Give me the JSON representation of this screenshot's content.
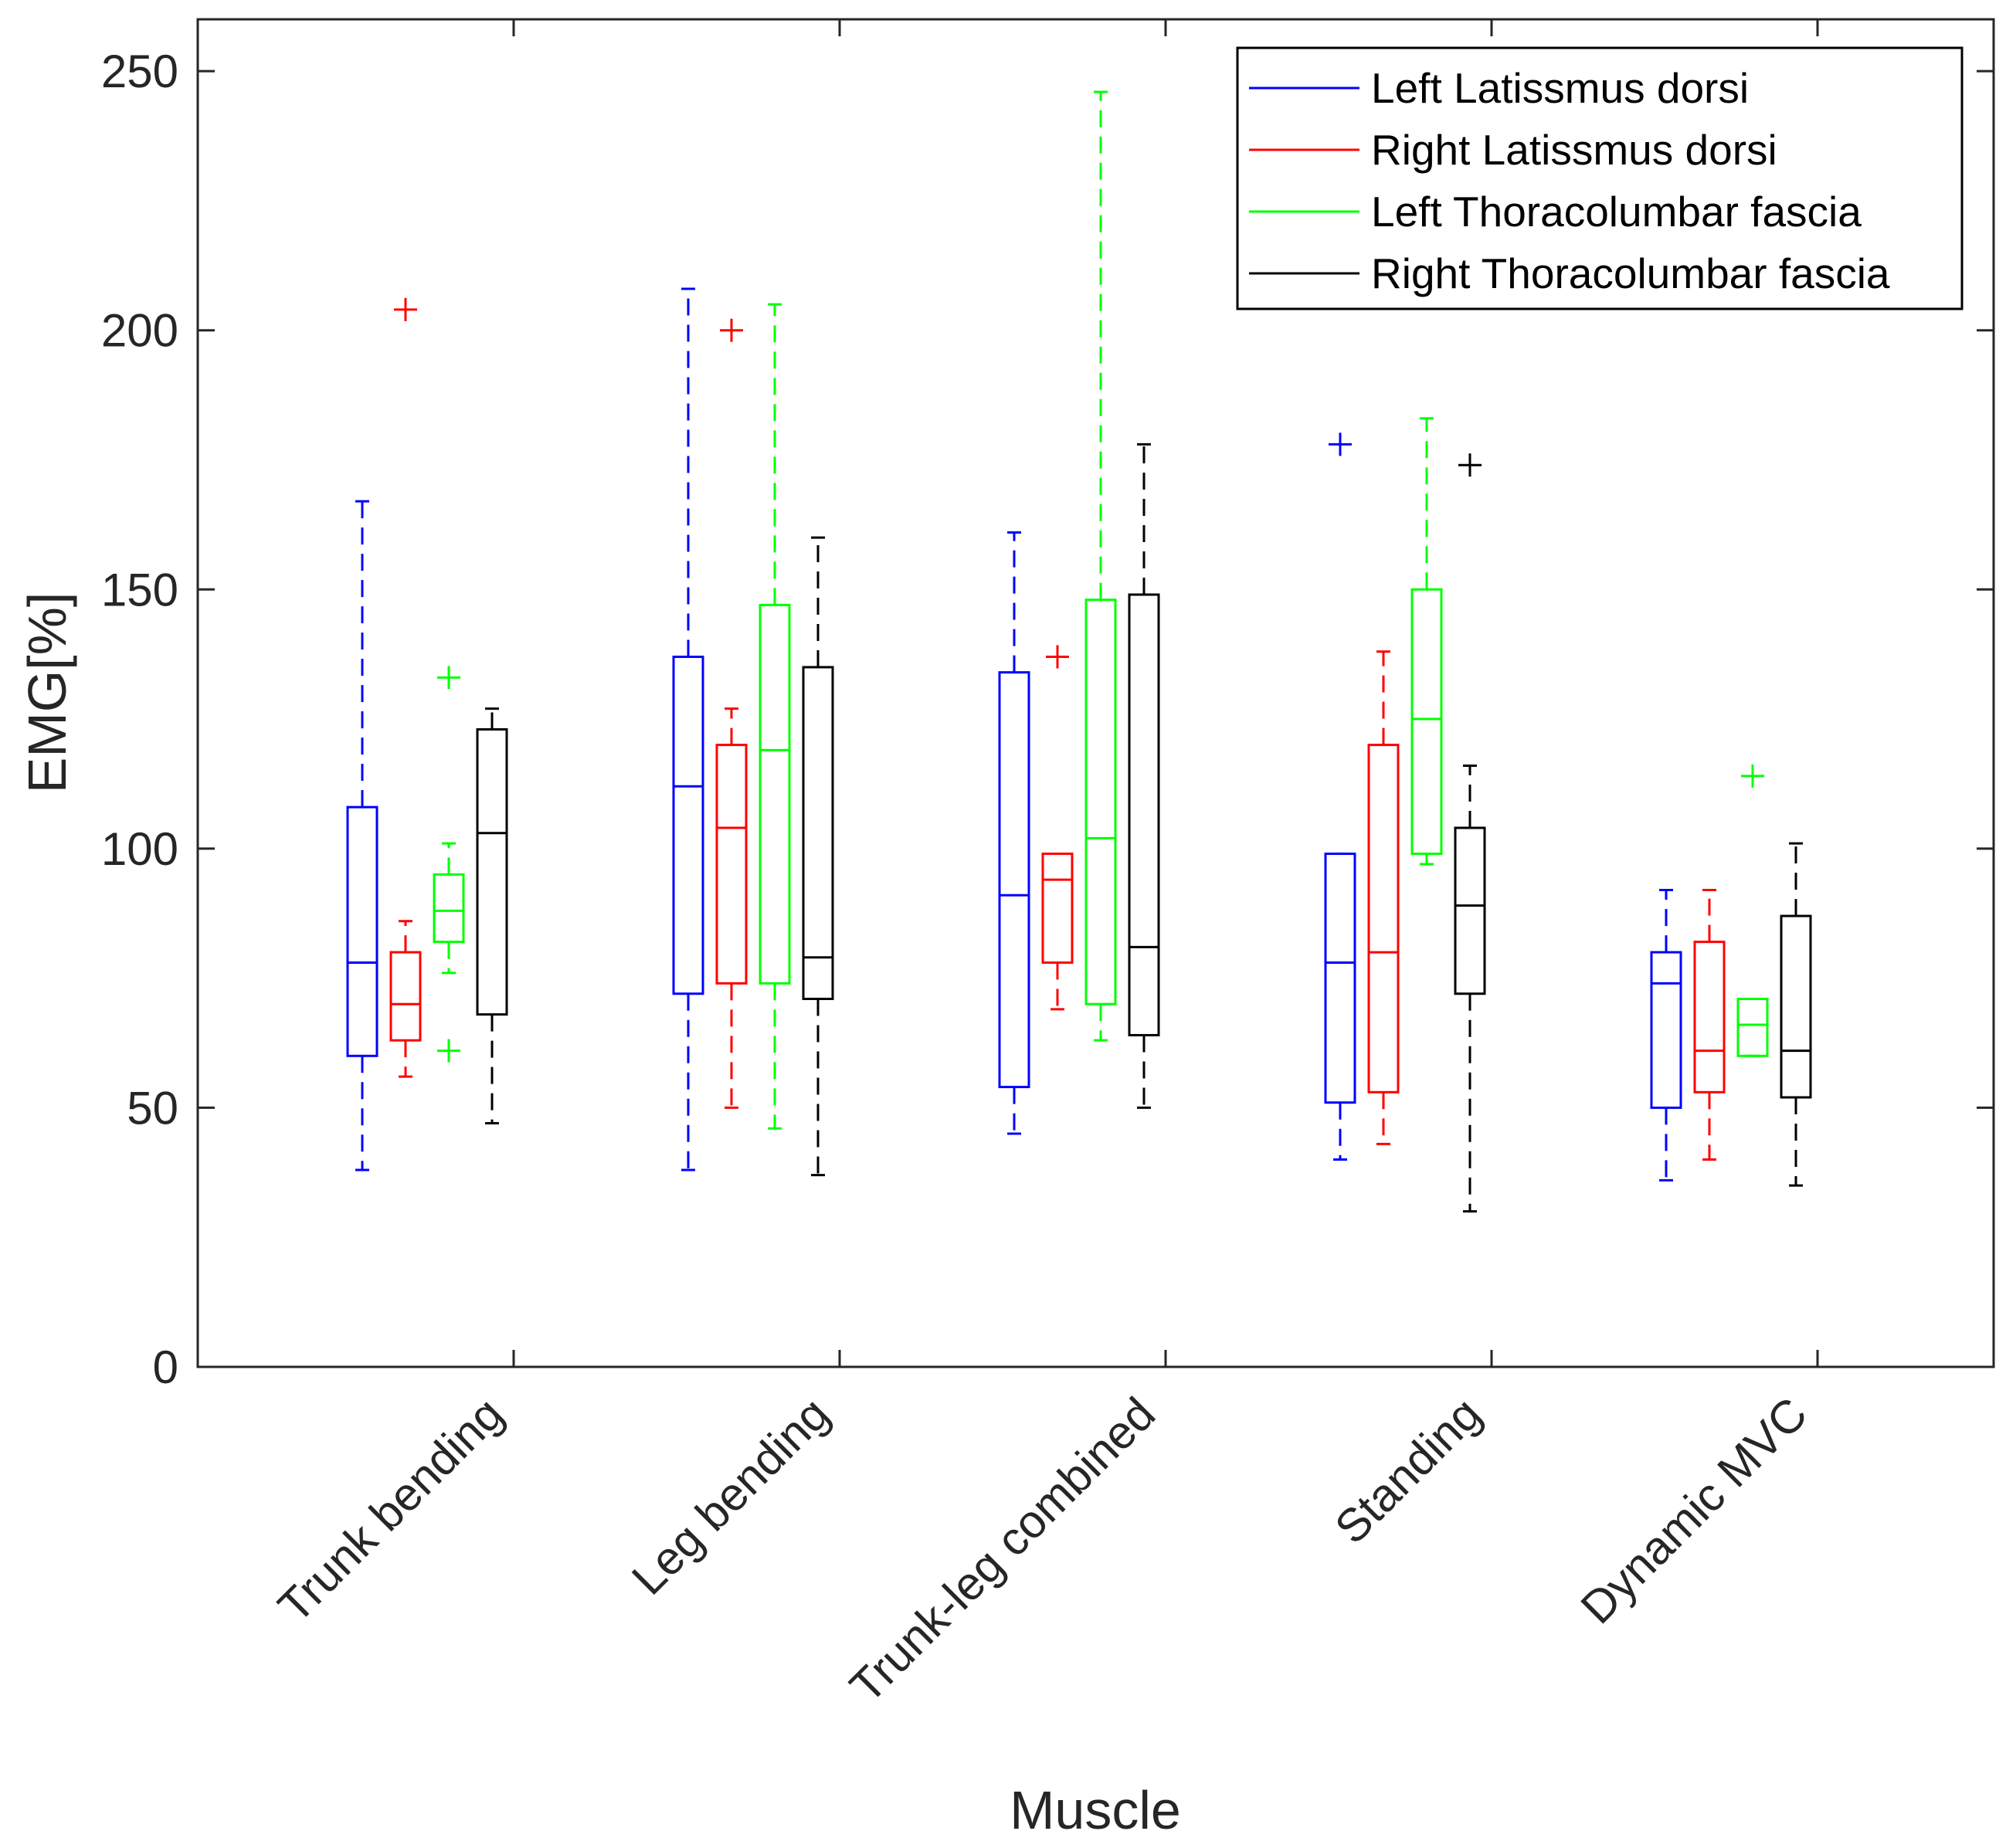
{
  "chart_data": {
    "type": "boxplot",
    "title": "",
    "xlabel": "Muscle",
    "ylabel": "EMG[%]",
    "ylim": [
      0,
      260
    ],
    "yticks": [
      0,
      50,
      100,
      150,
      200,
      250
    ],
    "categories": [
      "Trunk bending",
      "Leg bending",
      "Trunk-leg combined",
      "Standing",
      "Dynamic MVC"
    ],
    "legend_position": "top-right",
    "series": [
      {
        "name": "Left Latissmus dorsi",
        "color": "#0000ff",
        "boxes": [
          {
            "whisker_low": 38,
            "q1": 60,
            "median": 78,
            "q3": 108,
            "whisker_high": 167,
            "outliers": []
          },
          {
            "whisker_low": 38,
            "q1": 72,
            "median": 112,
            "q3": 137,
            "whisker_high": 208,
            "outliers": []
          },
          {
            "whisker_low": 45,
            "q1": 54,
            "median": 91,
            "q3": 134,
            "whisker_high": 161,
            "outliers": []
          },
          {
            "whisker_low": 40,
            "q1": 51,
            "median": 78,
            "q3": 99,
            "whisker_high": 99,
            "outliers": [
              178
            ]
          },
          {
            "whisker_low": 36,
            "q1": 50,
            "median": 74,
            "q3": 80,
            "whisker_high": 92,
            "outliers": []
          }
        ]
      },
      {
        "name": "Right Latissmus dorsi",
        "color": "#ff0000",
        "boxes": [
          {
            "whisker_low": 56,
            "q1": 63,
            "median": 70,
            "q3": 80,
            "whisker_high": 86,
            "outliers": [
              204
            ]
          },
          {
            "whisker_low": 50,
            "q1": 74,
            "median": 104,
            "q3": 120,
            "whisker_high": 127,
            "outliers": [
              200
            ]
          },
          {
            "whisker_low": 69,
            "q1": 78,
            "median": 94,
            "q3": 99,
            "whisker_high": 99,
            "outliers": [
              137
            ]
          },
          {
            "whisker_low": 43,
            "q1": 53,
            "median": 80,
            "q3": 120,
            "whisker_high": 138,
            "outliers": []
          },
          {
            "whisker_low": 40,
            "q1": 53,
            "median": 61,
            "q3": 82,
            "whisker_high": 92,
            "outliers": []
          }
        ]
      },
      {
        "name": "Left Thoracolumbar fascia",
        "color": "#00ff00",
        "boxes": [
          {
            "whisker_low": 76,
            "q1": 82,
            "median": 88,
            "q3": 95,
            "whisker_high": 101,
            "outliers": [
              133,
              61
            ]
          },
          {
            "whisker_low": 46,
            "q1": 74,
            "median": 119,
            "q3": 147,
            "whisker_high": 205,
            "outliers": []
          },
          {
            "whisker_low": 63,
            "q1": 70,
            "median": 102,
            "q3": 148,
            "whisker_high": 246,
            "outliers": []
          },
          {
            "whisker_low": 97,
            "q1": 99,
            "median": 125,
            "q3": 150,
            "whisker_high": 183,
            "outliers": []
          },
          {
            "whisker_low": 60,
            "q1": 60,
            "median": 66,
            "q3": 71,
            "whisker_high": 71,
            "outliers": [
              114
            ]
          }
        ]
      },
      {
        "name": "Right Thoracolumbar fascia",
        "color": "#000000",
        "boxes": [
          {
            "whisker_low": 47,
            "q1": 68,
            "median": 103,
            "q3": 123,
            "whisker_high": 127,
            "outliers": []
          },
          {
            "whisker_low": 37,
            "q1": 71,
            "median": 79,
            "q3": 135,
            "whisker_high": 160,
            "outliers": []
          },
          {
            "whisker_low": 50,
            "q1": 64,
            "median": 81,
            "q3": 149,
            "whisker_high": 178,
            "outliers": []
          },
          {
            "whisker_low": 30,
            "q1": 72,
            "median": 89,
            "q3": 104,
            "whisker_high": 116,
            "outliers": [
              174
            ]
          },
          {
            "whisker_low": 35,
            "q1": 52,
            "median": 61,
            "q3": 87,
            "whisker_high": 101,
            "outliers": []
          }
        ]
      }
    ]
  }
}
